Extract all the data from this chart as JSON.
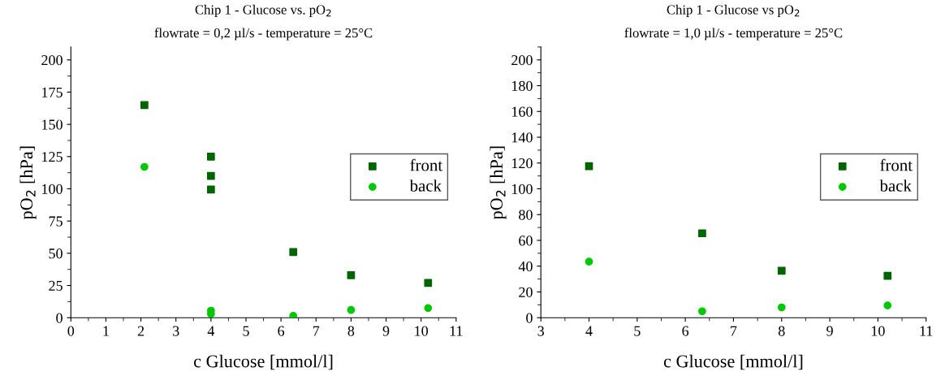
{
  "chart_data": [
    {
      "type": "scatter",
      "title": "Chip 1 - Glucose vs. pO$_{2}$",
      "subtitle": "flowrate = 0,2 µl/s - temperature = 25°C",
      "xlabel": "c Glucose [mmol/l]",
      "ylabel": "pO$_{2}$ [hPa]",
      "xlim": [
        0,
        11
      ],
      "xticks": [
        0,
        1,
        2,
        3,
        4,
        5,
        6,
        7,
        8,
        9,
        10,
        11
      ],
      "ylim": [
        0,
        210
      ],
      "yticks": [
        0,
        25,
        50,
        75,
        100,
        125,
        150,
        175,
        200
      ],
      "grid": false,
      "legend": "right",
      "series": [
        {
          "name": "front",
          "color": "#006400",
          "marker": "square",
          "x": [
            2.1,
            4,
            4,
            4,
            6.35,
            8,
            10.2
          ],
          "values": [
            165,
            125,
            110,
            99.5,
            51,
            33,
            27
          ]
        },
        {
          "name": "back",
          "color": "#00c800",
          "marker": "circle",
          "x": [
            2.1,
            4,
            4,
            6.35,
            8,
            10.2
          ],
          "values": [
            117,
            5.5,
            3,
            1.5,
            6,
            7.5
          ]
        }
      ]
    },
    {
      "type": "scatter",
      "title": "Chip 1 - Glucose vs pO$_{2}$",
      "subtitle": "flowrate = 1,0 µl/s - temperature = 25°C",
      "xlabel": "c Glucose [mmol/l]",
      "ylabel": "pO$_{2}$ [hPa]",
      "xlim": [
        3,
        11
      ],
      "xticks": [
        3,
        4,
        5,
        6,
        7,
        8,
        9,
        10,
        11
      ],
      "ylim": [
        0,
        210
      ],
      "yticks": [
        0,
        20,
        40,
        60,
        80,
        100,
        120,
        140,
        160,
        180,
        200
      ],
      "grid": false,
      "legend": "right",
      "series": [
        {
          "name": "front",
          "color": "#006400",
          "marker": "square",
          "x": [
            4,
            6.35,
            8,
            10.2
          ],
          "values": [
            117.5,
            65.5,
            36.5,
            32.5
          ]
        },
        {
          "name": "back",
          "color": "#00c800",
          "marker": "circle",
          "x": [
            4,
            6.35,
            8,
            10.2
          ],
          "values": [
            43.5,
            5,
            8,
            9.5
          ]
        }
      ]
    }
  ]
}
